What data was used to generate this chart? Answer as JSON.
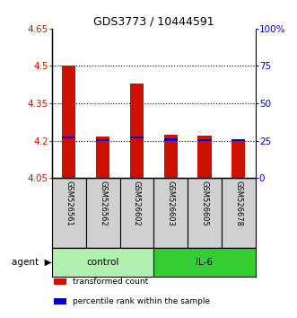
{
  "title": "GDS3773 / 10444591",
  "samples": [
    "GSM526561",
    "GSM526562",
    "GSM526602",
    "GSM526603",
    "GSM526605",
    "GSM526678"
  ],
  "red_bar_values": [
    4.503,
    4.218,
    4.43,
    4.225,
    4.22,
    4.205
  ],
  "blue_marker_values": [
    4.213,
    4.203,
    4.213,
    4.205,
    4.203,
    4.203
  ],
  "y_min": 4.05,
  "y_max": 4.65,
  "y_ticks": [
    4.05,
    4.2,
    4.35,
    4.5,
    4.65
  ],
  "y_tick_labels": [
    "4.05",
    "4.2",
    "4.35",
    "4.5",
    "4.65"
  ],
  "y2_ticks": [
    0,
    25,
    50,
    75,
    100
  ],
  "y2_tick_labels": [
    "0",
    "25",
    "50",
    "75",
    "100%"
  ],
  "grid_lines": [
    4.2,
    4.35,
    4.5
  ],
  "groups": [
    {
      "label": "control",
      "indices": [
        0,
        1,
        2
      ],
      "color": "#b2f0b2"
    },
    {
      "label": "IL-6",
      "indices": [
        3,
        4,
        5
      ],
      "color": "#33cc33"
    }
  ],
  "bar_color": "#cc1100",
  "marker_color": "#0000cc",
  "baseline": 4.05,
  "agent_label": "agent",
  "legend_items": [
    {
      "color": "#cc1100",
      "label": "transformed count"
    },
    {
      "color": "#0000cc",
      "label": "percentile rank within the sample"
    }
  ],
  "sample_box_color": "#d0d0d0",
  "background_color": "#ffffff",
  "left_axis_color": "#cc1100",
  "right_axis_color": "#0000cc"
}
